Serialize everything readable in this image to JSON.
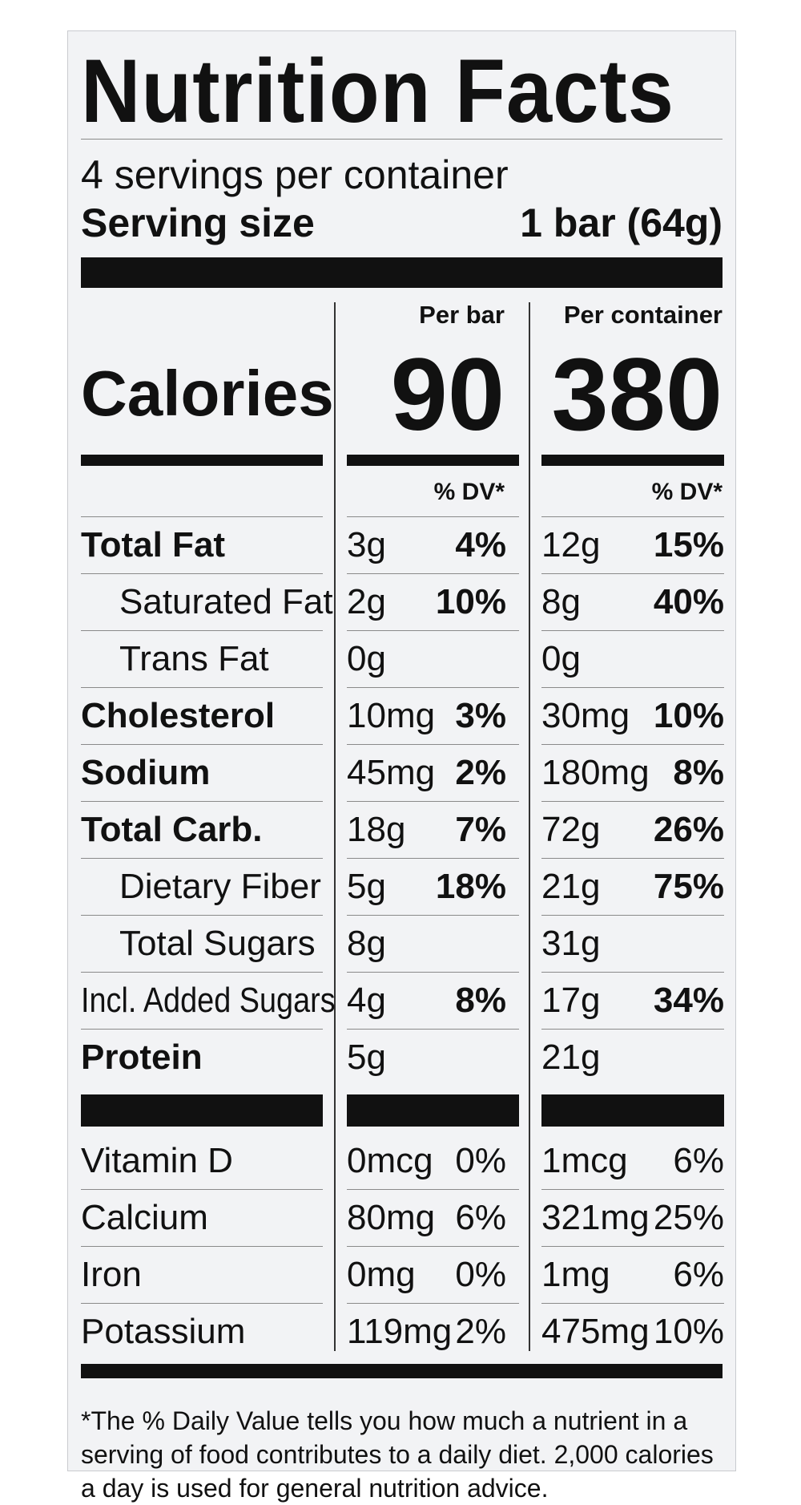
{
  "label": {
    "title": "Nutrition Facts",
    "servings_per_container": "4 servings per container",
    "serving_size_label": "Serving size",
    "serving_size_value": "1 bar (64g)",
    "col_bar_header": "Per bar",
    "col_container_header": "Per container",
    "calories_label": "Calories",
    "calories_per_bar": "90",
    "calories_per_container": "380",
    "dv_header": "% DV*",
    "nutrients": [
      {
        "name": "Total Fat",
        "bar_amount": "3g",
        "bar_dv": "4%",
        "container_amount": "12g",
        "container_dv": "15%"
      },
      {
        "name": "Saturated Fat",
        "bar_amount": "2g",
        "bar_dv": "10%",
        "container_amount": "8g",
        "container_dv": "40%"
      },
      {
        "name": "Trans Fat",
        "bar_amount": "0g",
        "bar_dv": "",
        "container_amount": "0g",
        "container_dv": ""
      },
      {
        "name": "Cholesterol",
        "bar_amount": "10mg",
        "bar_dv": "3%",
        "container_amount": "30mg",
        "container_dv": "10%"
      },
      {
        "name": "Sodium",
        "bar_amount": "45mg",
        "bar_dv": "2%",
        "container_amount": "180mg",
        "container_dv": "8%"
      },
      {
        "name": "Total Carb.",
        "bar_amount": "18g",
        "bar_dv": "7%",
        "container_amount": "72g",
        "container_dv": "26%"
      },
      {
        "name": "Dietary Fiber",
        "bar_amount": "5g",
        "bar_dv": "18%",
        "container_amount": "21g",
        "container_dv": "75%"
      },
      {
        "name": "Total Sugars",
        "bar_amount": "8g",
        "bar_dv": "",
        "container_amount": "31g",
        "container_dv": ""
      },
      {
        "name": "Incl. Added Sugars",
        "bar_amount": "4g",
        "bar_dv": "8%",
        "container_amount": "17g",
        "container_dv": "34%"
      },
      {
        "name": "Protein",
        "bar_amount": "5g",
        "bar_dv": "",
        "container_amount": "21g",
        "container_dv": ""
      }
    ],
    "vitamins": [
      {
        "name": "Vitamin D",
        "bar_amount": "0mcg",
        "bar_dv": "0%",
        "container_amount": "1mcg",
        "container_dv": "6%"
      },
      {
        "name": "Calcium",
        "bar_amount": "80mg",
        "bar_dv": "6%",
        "container_amount": "321mg",
        "container_dv": "25%"
      },
      {
        "name": "Iron",
        "bar_amount": "0mg",
        "bar_dv": "0%",
        "container_amount": "1mg",
        "container_dv": "6%"
      },
      {
        "name": "Potassium",
        "bar_amount": "119mg",
        "bar_dv": "2%",
        "container_amount": "475mg",
        "container_dv": "10%"
      }
    ],
    "footnote": "*The % Daily Value tells you how much a nutrient in a serving of food contributes to a daily diet. 2,000 calories a day is used for general nutrition advice."
  }
}
